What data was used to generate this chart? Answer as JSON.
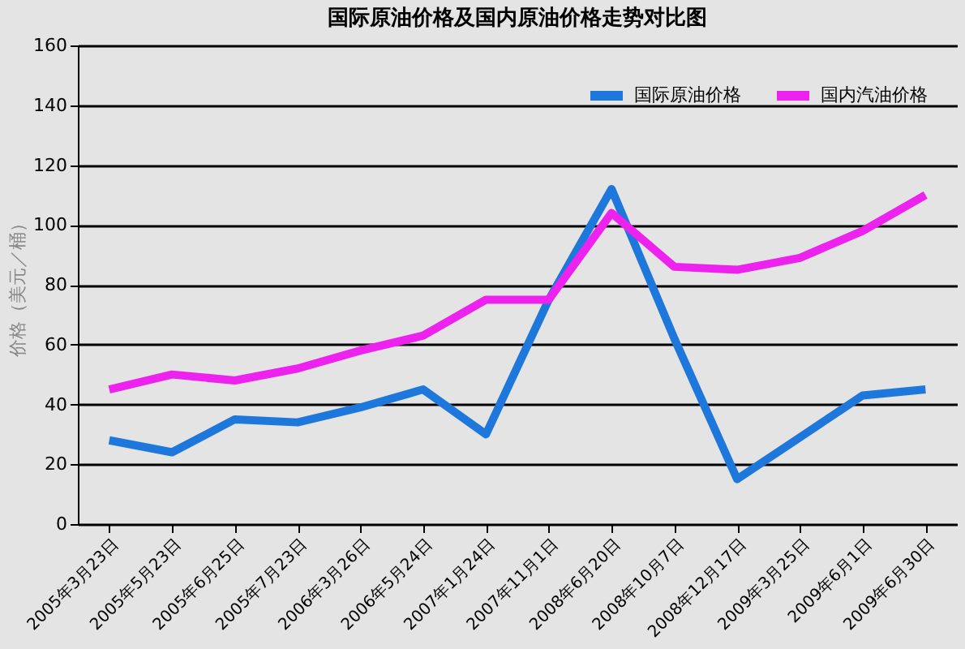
{
  "chart_data": {
    "type": "line",
    "title": "国际原油价格及国内原油价格走势对比图",
    "ylabel": "价格（美元／桶）",
    "categories": [
      "2005年3月23日",
      "2005年5月23日",
      "2005年6月25日",
      "2005年7月23日",
      "2006年3月26日",
      "2006年5月24日",
      "2007年1月24日",
      "2007年11月1日",
      "2008年6月20日",
      "2008年10月7日",
      "2008年12月17日",
      "2009年3月25日",
      "2009年6月1日",
      "2009年6月30日"
    ],
    "series": [
      {
        "name": "国际原油价格",
        "color": "#1e78dc",
        "values": [
          28,
          24,
          35,
          34,
          39,
          45,
          30,
          75,
          112,
          62,
          15,
          29,
          43,
          45
        ]
      },
      {
        "name": "国内汽油价格",
        "color": "#ee22ee",
        "values": [
          45,
          50,
          48,
          52,
          58,
          63,
          75,
          75,
          104,
          86,
          85,
          89,
          98,
          110
        ]
      }
    ],
    "ylim": [
      0,
      160
    ],
    "yticks": [
      0,
      20,
      40,
      60,
      80,
      100,
      120,
      140,
      160
    ],
    "grid": "y",
    "legend": "top right",
    "line_style": "solid",
    "marker": "none"
  }
}
